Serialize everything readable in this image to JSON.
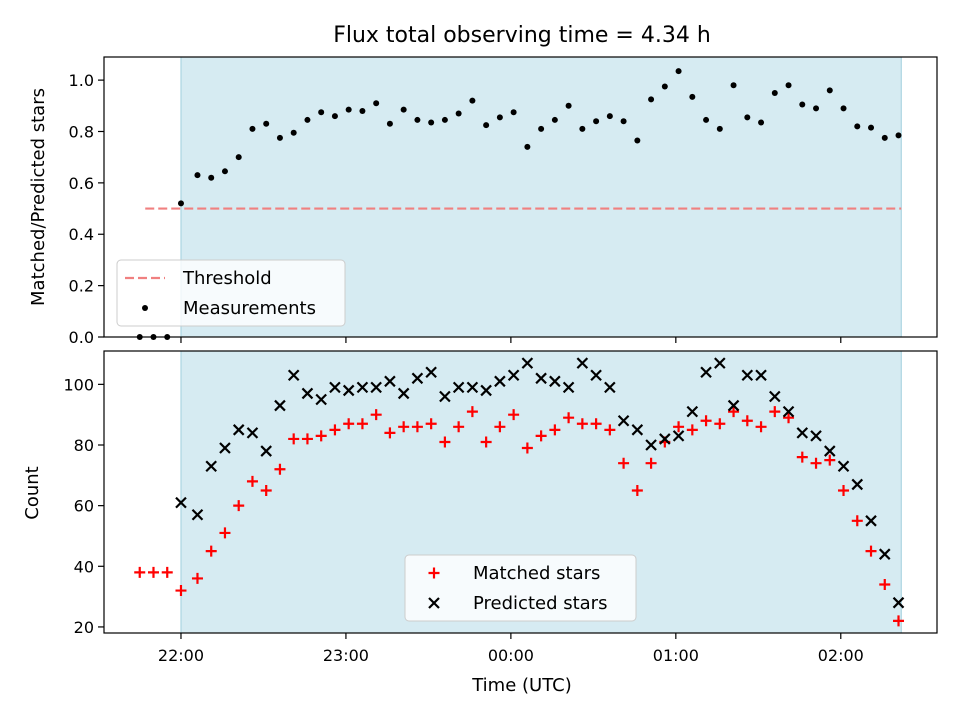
{
  "chart_data": [
    {
      "type": "scatter",
      "title": "Flux total observing time = 4.34 h",
      "ylabel": "Matched/Predicted stars",
      "xlabel": "",
      "xlim": [
        "21:32",
        "02:35"
      ],
      "ylim": [
        0,
        1.09
      ],
      "yticks": [
        0.0,
        0.2,
        0.4,
        0.6,
        0.8,
        1.0
      ],
      "ytick_labels": [
        "0.0",
        "0.2",
        "0.4",
        "0.6",
        "0.8",
        "1.0"
      ],
      "observing_window": [
        "22:00",
        "02:22"
      ],
      "threshold": {
        "value": 0.5,
        "x": [
          "21:47",
          "02:22"
        ],
        "color": "#f08080"
      },
      "legend": {
        "position": "lower-left",
        "entries": [
          "Threshold",
          "Measurements"
        ]
      },
      "series": [
        {
          "name": "Measurements",
          "marker": "dot",
          "color": "#000000",
          "points": [
            [
              "21:45",
              0.0
            ],
            [
              "21:50",
              0.0
            ],
            [
              "21:55",
              0.0
            ],
            [
              "22:00",
              0.52
            ],
            [
              "22:06",
              0.63
            ],
            [
              "22:11",
              0.62
            ],
            [
              "22:16",
              0.645
            ],
            [
              "22:21",
              0.7
            ],
            [
              "22:26",
              0.81
            ],
            [
              "22:31",
              0.83
            ],
            [
              "22:36",
              0.775
            ],
            [
              "22:41",
              0.795
            ],
            [
              "22:46",
              0.845
            ],
            [
              "22:51",
              0.875
            ],
            [
              "22:56",
              0.86
            ],
            [
              "23:01",
              0.885
            ],
            [
              "23:06",
              0.88
            ],
            [
              "23:11",
              0.91
            ],
            [
              "23:16",
              0.83
            ],
            [
              "23:21",
              0.885
            ],
            [
              "23:26",
              0.845
            ],
            [
              "23:31",
              0.835
            ],
            [
              "23:36",
              0.845
            ],
            [
              "23:41",
              0.87
            ],
            [
              "23:46",
              0.92
            ],
            [
              "23:51",
              0.825
            ],
            [
              "23:56",
              0.855
            ],
            [
              "00:01",
              0.875
            ],
            [
              "00:06",
              0.74
            ],
            [
              "00:11",
              0.81
            ],
            [
              "00:16",
              0.845
            ],
            [
              "00:21",
              0.9
            ],
            [
              "00:26",
              0.81
            ],
            [
              "00:31",
              0.84
            ],
            [
              "00:36",
              0.86
            ],
            [
              "00:41",
              0.84
            ],
            [
              "00:46",
              0.765
            ],
            [
              "00:51",
              0.925
            ],
            [
              "00:56",
              0.975
            ],
            [
              "01:01",
              1.035
            ],
            [
              "01:06",
              0.935
            ],
            [
              "01:11",
              0.845
            ],
            [
              "01:16",
              0.81
            ],
            [
              "01:21",
              0.98
            ],
            [
              "01:26",
              0.855
            ],
            [
              "01:31",
              0.835
            ],
            [
              "01:36",
              0.95
            ],
            [
              "01:41",
              0.98
            ],
            [
              "01:46",
              0.905
            ],
            [
              "01:51",
              0.89
            ],
            [
              "01:56",
              0.96
            ],
            [
              "02:01",
              0.89
            ],
            [
              "02:06",
              0.82
            ],
            [
              "02:11",
              0.815
            ],
            [
              "02:16",
              0.775
            ],
            [
              "02:21",
              0.785
            ]
          ]
        }
      ]
    },
    {
      "type": "scatter",
      "xlabel": "Time (UTC)",
      "ylabel": "Count",
      "xlim": [
        "21:32",
        "02:35"
      ],
      "ylim": [
        18,
        111
      ],
      "yticks": [
        20,
        40,
        60,
        80,
        100
      ],
      "ytick_labels": [
        "20",
        "40",
        "60",
        "80",
        "100"
      ],
      "xticks": [
        "22:00",
        "23:00",
        "00:00",
        "01:00",
        "02:00"
      ],
      "xtick_labels": [
        "22:00",
        "23:00",
        "00:00",
        "01:00",
        "02:00"
      ],
      "observing_window": [
        "22:00",
        "02:22"
      ],
      "legend": {
        "position": "lower-center",
        "entries": [
          "Matched stars",
          "Predicted stars"
        ]
      },
      "series": [
        {
          "name": "Matched stars",
          "marker": "plus",
          "color": "#ff0000",
          "points": [
            [
              "21:45",
              38
            ],
            [
              "21:50",
              38
            ],
            [
              "21:55",
              38
            ],
            [
              "22:00",
              32
            ],
            [
              "22:06",
              36
            ],
            [
              "22:11",
              45
            ],
            [
              "22:16",
              51
            ],
            [
              "22:21",
              60
            ],
            [
              "22:26",
              68
            ],
            [
              "22:31",
              65
            ],
            [
              "22:36",
              72
            ],
            [
              "22:41",
              82
            ],
            [
              "22:46",
              82
            ],
            [
              "22:51",
              83
            ],
            [
              "22:56",
              85
            ],
            [
              "23:01",
              87
            ],
            [
              "23:06",
              87
            ],
            [
              "23:11",
              90
            ],
            [
              "23:16",
              84
            ],
            [
              "23:21",
              86
            ],
            [
              "23:26",
              86
            ],
            [
              "23:31",
              87
            ],
            [
              "23:36",
              81
            ],
            [
              "23:41",
              86
            ],
            [
              "23:46",
              91
            ],
            [
              "23:51",
              81
            ],
            [
              "23:56",
              86
            ],
            [
              "00:01",
              90
            ],
            [
              "00:06",
              79
            ],
            [
              "00:11",
              83
            ],
            [
              "00:16",
              85
            ],
            [
              "00:21",
              89
            ],
            [
              "00:26",
              87
            ],
            [
              "00:31",
              87
            ],
            [
              "00:36",
              85
            ],
            [
              "00:41",
              74
            ],
            [
              "00:46",
              65
            ],
            [
              "00:51",
              74
            ],
            [
              "00:56",
              81
            ],
            [
              "01:01",
              86
            ],
            [
              "01:06",
              85
            ],
            [
              "01:11",
              88
            ],
            [
              "01:16",
              87
            ],
            [
              "01:21",
              91
            ],
            [
              "01:26",
              88
            ],
            [
              "01:31",
              86
            ],
            [
              "01:36",
              91
            ],
            [
              "01:41",
              89
            ],
            [
              "01:46",
              76
            ],
            [
              "01:51",
              74
            ],
            [
              "01:56",
              75
            ],
            [
              "02:01",
              65
            ],
            [
              "02:06",
              55
            ],
            [
              "02:11",
              45
            ],
            [
              "02:16",
              34
            ],
            [
              "02:21",
              22
            ]
          ]
        },
        {
          "name": "Predicted stars",
          "marker": "x",
          "color": "#000000",
          "points": [
            [
              "22:00",
              61
            ],
            [
              "22:06",
              57
            ],
            [
              "22:11",
              73
            ],
            [
              "22:16",
              79
            ],
            [
              "22:21",
              85
            ],
            [
              "22:26",
              84
            ],
            [
              "22:31",
              78
            ],
            [
              "22:36",
              93
            ],
            [
              "22:41",
              103
            ],
            [
              "22:46",
              97
            ],
            [
              "22:51",
              95
            ],
            [
              "22:56",
              99
            ],
            [
              "23:01",
              98
            ],
            [
              "23:06",
              99
            ],
            [
              "23:11",
              99
            ],
            [
              "23:16",
              101
            ],
            [
              "23:21",
              97
            ],
            [
              "23:26",
              102
            ],
            [
              "23:31",
              104
            ],
            [
              "23:36",
              96
            ],
            [
              "23:41",
              99
            ],
            [
              "23:46",
              99
            ],
            [
              "23:51",
              98
            ],
            [
              "23:56",
              101
            ],
            [
              "00:01",
              103
            ],
            [
              "00:06",
              107
            ],
            [
              "00:11",
              102
            ],
            [
              "00:16",
              101
            ],
            [
              "00:21",
              99
            ],
            [
              "00:26",
              107
            ],
            [
              "00:31",
              103
            ],
            [
              "00:36",
              99
            ],
            [
              "00:41",
              88
            ],
            [
              "00:46",
              85
            ],
            [
              "00:51",
              80
            ],
            [
              "00:56",
              82
            ],
            [
              "01:01",
              83
            ],
            [
              "01:06",
              91
            ],
            [
              "01:11",
              104
            ],
            [
              "01:16",
              107
            ],
            [
              "01:21",
              93
            ],
            [
              "01:26",
              103
            ],
            [
              "01:31",
              103
            ],
            [
              "01:36",
              96
            ],
            [
              "01:41",
              91
            ],
            [
              "01:46",
              84
            ],
            [
              "01:51",
              83
            ],
            [
              "01:56",
              78
            ],
            [
              "02:01",
              73
            ],
            [
              "02:06",
              67
            ],
            [
              "02:11",
              55
            ],
            [
              "02:16",
              44
            ],
            [
              "02:21",
              28
            ]
          ]
        }
      ]
    }
  ]
}
